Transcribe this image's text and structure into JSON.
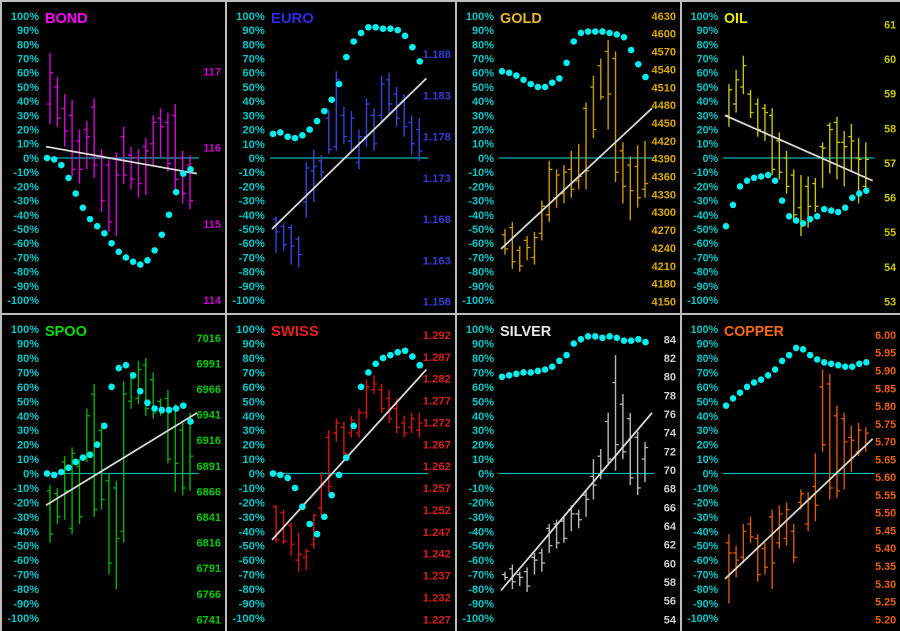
{
  "window": {
    "background": "#000000",
    "divider_color": "#BEBEBE"
  },
  "axis": {
    "left_labels": [
      "100%",
      "90%",
      "80%",
      "70%",
      "60%",
      "50%",
      "40%",
      "30%",
      "20%",
      "10%",
      "0%",
      "-10%",
      "-20%",
      "-30%",
      "-40%",
      "-50%",
      "-60%",
      "-70%",
      "-80%",
      "-90%",
      "-100%"
    ],
    "left_min": -100,
    "left_max": 100,
    "left_step": 10,
    "left_color": "#00C8C8",
    "dot_color": "#00F0F0",
    "zero_line_color": "#00B4B4",
    "trend_color": "#D8D8D8",
    "grid": "off"
  },
  "chart_data": [
    {
      "type": "ohlc+oscillator",
      "title": "BOND",
      "title_color": "#FF00FF",
      "bar_color": "#DB00DB",
      "axis_color": "#CC00CC",
      "right_labels": [
        "117",
        "116",
        "115",
        "114"
      ],
      "right_top_pct": 61,
      "right_bottom_pct": -100,
      "bars_ohlc_pct": [
        [
          74,
          24,
          38,
          60
        ],
        [
          57,
          22,
          50,
          28
        ],
        [
          45,
          8,
          35,
          19
        ],
        [
          41,
          -13,
          30,
          -8
        ],
        [
          20,
          -18,
          12,
          -8
        ],
        [
          26,
          -8,
          20,
          15
        ],
        [
          42,
          -14,
          36,
          -5
        ],
        [
          6,
          -38,
          0,
          -30
        ],
        [
          0,
          -52,
          -5,
          -45
        ],
        [
          4,
          -55,
          0,
          -12
        ],
        [
          22,
          -18,
          15,
          -12
        ],
        [
          8,
          -22,
          2,
          -15
        ],
        [
          6,
          -28,
          0,
          -18
        ],
        [
          14,
          -26,
          8,
          5
        ],
        [
          30,
          -6,
          10,
          25
        ],
        [
          35,
          0,
          28,
          22
        ],
        [
          32,
          -10,
          25,
          -4
        ],
        [
          38,
          -22,
          30,
          -15
        ],
        [
          5,
          -32,
          0,
          -25
        ],
        [
          2,
          -36,
          -5,
          -30
        ]
      ],
      "oscillator_dots_pct": [
        0,
        -1,
        -5,
        -14,
        -25,
        -35,
        -43,
        -48,
        -53,
        -60,
        -66,
        -70,
        -73,
        -75,
        -72,
        -65,
        -54,
        -40,
        -24,
        -11,
        -8
      ],
      "trendline_pct": [
        8,
        -11
      ],
      "zero_line_pct": 0
    },
    {
      "type": "ohlc+oscillator",
      "title": "EURO",
      "title_color": "#2A2AE8",
      "bar_color": "#3344DD",
      "axis_color": "#3939D6",
      "right_labels": [
        "1.188",
        "1.183",
        "1.178",
        "1.173",
        "1.168",
        "1.163",
        "1.158"
      ],
      "right_top_pct": 73,
      "right_bottom_pct": -101,
      "bars_ohlc_pct": [
        [
          -41,
          -67,
          -43,
          -52
        ],
        [
          -46,
          -65,
          -48,
          -61
        ],
        [
          -47,
          -75,
          -49,
          -62
        ],
        [
          -55,
          -77,
          -57,
          -68
        ],
        [
          -3,
          -42,
          -31,
          -7
        ],
        [
          6,
          -31,
          -9,
          -6
        ],
        [
          2,
          -14,
          -2,
          -10
        ],
        [
          34,
          3,
          28,
          6
        ],
        [
          61,
          5,
          8,
          55
        ],
        [
          36,
          10,
          30,
          15
        ],
        [
          33,
          5,
          12,
          28
        ],
        [
          20,
          -8,
          -3,
          15
        ],
        [
          42,
          8,
          15,
          38
        ],
        [
          35,
          5,
          30,
          10
        ],
        [
          58,
          25,
          30,
          52
        ],
        [
          60,
          30,
          55,
          38
        ],
        [
          50,
          22,
          45,
          28
        ],
        [
          45,
          15,
          40,
          22
        ],
        [
          30,
          2,
          25,
          10
        ],
        [
          28,
          -2,
          20,
          5
        ]
      ],
      "oscillator_dots_pct": [
        17,
        18,
        15,
        14,
        16,
        20,
        26,
        33,
        41,
        52,
        71,
        82,
        88,
        92,
        92,
        91,
        91,
        90,
        86,
        78,
        68
      ],
      "trendline_pct": [
        -50,
        56
      ],
      "zero_line_pct": 0
    },
    {
      "type": "ohlc+oscillator",
      "title": "GOLD",
      "title_color": "#E8B820",
      "bar_color": "#CC9900",
      "axis_color": "#D8A800",
      "right_labels": [
        "4630",
        "4600",
        "4570",
        "4540",
        "4510",
        "4480",
        "4450",
        "4420",
        "4390",
        "4360",
        "4330",
        "4300",
        "4270",
        "4240",
        "4210",
        "4180",
        "4150"
      ],
      "right_top_pct": 100,
      "right_bottom_pct": -101,
      "bars_ohlc_pct": [
        [
          -50,
          -68,
          -54,
          -64
        ],
        [
          -45,
          -78,
          -49,
          -73
        ],
        [
          -62,
          -80,
          -65,
          -76
        ],
        [
          -55,
          -72,
          -58,
          -63
        ],
        [
          -52,
          -75,
          -70,
          -56
        ],
        [
          -30,
          -58,
          -53,
          -34
        ],
        [
          -2,
          -45,
          -40,
          -8
        ],
        [
          -8,
          -35,
          -28,
          -12
        ],
        [
          -5,
          -32,
          -25,
          -10
        ],
        [
          5,
          -28,
          -8,
          -22
        ],
        [
          10,
          -22,
          -16,
          -13
        ],
        [
          39,
          -22,
          35,
          -9
        ],
        [
          58,
          14,
          50,
          20
        ],
        [
          70,
          41,
          65,
          43
        ],
        [
          83,
          20,
          75,
          45
        ],
        [
          75,
          -17,
          70,
          -10
        ],
        [
          11,
          -32,
          5,
          -20
        ],
        [
          1,
          -44,
          -5,
          -23
        ],
        [
          9,
          -35,
          -6,
          -28
        ],
        [
          12,
          -28,
          -22,
          -18
        ]
      ],
      "oscillator_dots_pct": [
        61,
        60,
        58,
        55,
        52,
        50,
        50,
        53,
        56,
        67,
        82,
        88,
        89,
        89,
        89,
        88,
        87,
        85,
        76,
        66,
        57
      ],
      "trendline_pct": [
        -64,
        35
      ],
      "zero_line_pct": 0
    },
    {
      "type": "ohlc+oscillator",
      "title": "OIL",
      "title_color": "#E8E800",
      "bar_color": "#C8C800",
      "axis_color": "#C8C800",
      "right_labels": [
        "61",
        "60",
        "59",
        "58",
        "57",
        "56",
        "55",
        "54",
        "53"
      ],
      "right_top_pct": 94,
      "right_bottom_pct": -101,
      "bars_ohlc_pct": [
        [
          52,
          22,
          30,
          48
        ],
        [
          62,
          32,
          38,
          55
        ],
        [
          72,
          45,
          50,
          65
        ],
        [
          48,
          28,
          45,
          32
        ],
        [
          42,
          15,
          38,
          20
        ],
        [
          38,
          12,
          35,
          32
        ],
        [
          35,
          -12,
          30,
          -8
        ],
        [
          18,
          -15,
          12,
          -10
        ],
        [
          5,
          -25,
          0,
          -20
        ],
        [
          -8,
          -45,
          -12,
          -40
        ],
        [
          -12,
          -55,
          -35,
          -48
        ],
        [
          -13,
          -49,
          -20,
          -34
        ],
        [
          -14,
          -38,
          -18,
          -34
        ],
        [
          11,
          -21,
          8,
          7
        ],
        [
          25,
          -11,
          23,
          20
        ],
        [
          29,
          -15,
          25,
          11
        ],
        [
          19,
          -20,
          11,
          8
        ],
        [
          24,
          -9,
          15,
          12
        ],
        [
          14,
          -32,
          0,
          -1
        ],
        [
          11,
          -22,
          -20,
          -1
        ]
      ],
      "oscillator_dots_pct": [
        -48,
        -33,
        -20,
        -16,
        -14,
        -13,
        -12,
        -16,
        -30,
        -41,
        -44,
        -46,
        -43,
        -41,
        -36,
        -37,
        -38,
        -35,
        -28,
        -25,
        -23
      ],
      "trendline_pct": [
        30,
        -16
      ],
      "zero_line_pct": 0
    },
    {
      "type": "ohlc+oscillator",
      "title": "SPOO",
      "title_color": "#00E000",
      "bar_color": "#00B400",
      "axis_color": "#00CC00",
      "right_labels": [
        "7016",
        "6991",
        "6966",
        "6941",
        "6916",
        "6891",
        "6866",
        "6841",
        "6816",
        "6791",
        "6766",
        "6741"
      ],
      "right_top_pct": 94,
      "right_bottom_pct": -101,
      "bars_ohlc_pct": [
        [
          -8,
          -48,
          -12,
          -42
        ],
        [
          -10,
          -35,
          -14,
          -30
        ],
        [
          12,
          -32,
          8,
          -12
        ],
        [
          18,
          -42,
          -38,
          14
        ],
        [
          10,
          -35,
          5,
          -30
        ],
        [
          45,
          8,
          12,
          40
        ],
        [
          62,
          -30,
          55,
          -25
        ],
        [
          35,
          -25,
          30,
          -18
        ],
        [
          0,
          -70,
          -5,
          -62
        ],
        [
          -5,
          -80,
          -10,
          -45
        ],
        [
          64,
          -48,
          -40,
          55
        ],
        [
          70,
          45,
          50,
          66
        ],
        [
          78,
          48,
          52,
          72
        ],
        [
          80,
          40,
          75,
          45
        ],
        [
          70,
          38,
          65,
          42
        ],
        [
          52,
          40,
          50,
          42
        ],
        [
          58,
          7,
          52,
          10
        ],
        [
          48,
          -13,
          45,
          7
        ],
        [
          35,
          -15,
          30,
          -10
        ],
        [
          42,
          -12,
          38,
          12
        ]
      ],
      "oscillator_dots_pct": [
        0,
        -1,
        1,
        4,
        8,
        11,
        13,
        20,
        33,
        60,
        73,
        75,
        68,
        57,
        49,
        45,
        44,
        44,
        45,
        47,
        36
      ],
      "trendline_pct": [
        -22,
        42
      ],
      "zero_line_pct": 0
    },
    {
      "type": "ohlc+oscillator",
      "title": "SWISS",
      "title_color": "#E82020",
      "bar_color": "#D41414",
      "axis_color": "#D42020",
      "right_labels": [
        "1.292",
        "1.287",
        "1.282",
        "1.277",
        "1.272",
        "1.267",
        "1.262",
        "1.257",
        "1.252",
        "1.247",
        "1.242",
        "1.237",
        "1.232",
        "1.227"
      ],
      "right_top_pct": 96,
      "right_bottom_pct": -101,
      "bars_ohlc_pct": [
        [
          -22,
          -48,
          -23,
          -46
        ],
        [
          -25,
          -49,
          -27,
          -47
        ],
        [
          -34,
          -57,
          -36,
          -49
        ],
        [
          -41,
          -68,
          -60,
          -56
        ],
        [
          -52,
          -67,
          -58,
          -54
        ],
        [
          -28,
          -52,
          -49,
          -29
        ],
        [
          1,
          -29,
          -24,
          -8
        ],
        [
          30,
          -14,
          25,
          -9
        ],
        [
          38,
          22,
          28,
          35
        ],
        [
          36,
          10,
          32,
          14
        ],
        [
          40,
          25,
          28,
          37
        ],
        [
          45,
          25,
          28,
          42
        ],
        [
          65,
          38,
          42,
          60
        ],
        [
          68,
          55,
          58,
          62
        ],
        [
          62,
          42,
          58,
          45
        ],
        [
          58,
          35,
          52,
          38
        ],
        [
          52,
          28,
          45,
          32
        ],
        [
          40,
          25,
          35,
          28
        ],
        [
          42,
          28,
          32,
          38
        ],
        [
          42,
          25,
          30,
          35
        ]
      ],
      "oscillator_dots_pct": [
        0,
        -1,
        -3,
        -10,
        -23,
        -35,
        -42,
        -30,
        -15,
        -1,
        11,
        33,
        60,
        70,
        76,
        80,
        82,
        84,
        85,
        81,
        75
      ],
      "trendline_pct": [
        -46,
        72
      ],
      "zero_line_pct": 0
    },
    {
      "type": "ohlc+oscillator",
      "title": "SILVER",
      "title_color": "#E8E8E8",
      "bar_color": "#B8B8B8",
      "axis_color": "#D0D0D0",
      "right_labels": [
        "84",
        "82",
        "80",
        "78",
        "76",
        "74",
        "72",
        "70",
        "68",
        "66",
        "64",
        "62",
        "60",
        "58",
        "56",
        "54"
      ],
      "right_top_pct": 93,
      "right_bottom_pct": -101,
      "bars_ohlc_pct": [
        [
          -68,
          -74,
          -70,
          -72
        ],
        [
          -63,
          -80,
          -66,
          -75
        ],
        [
          -68,
          -78,
          -70,
          -72
        ],
        [
          -65,
          -82,
          -68,
          -78
        ],
        [
          -55,
          -70,
          -58,
          -60
        ],
        [
          -52,
          -68,
          -55,
          -62
        ],
        [
          -35,
          -55,
          -38,
          -50
        ],
        [
          -32,
          -52,
          -35,
          -48
        ],
        [
          -30,
          -48,
          -33,
          -45
        ],
        [
          -22,
          -40,
          -25,
          -28
        ],
        [
          -25,
          -38,
          -28,
          -32
        ],
        [
          -12,
          -30,
          -15,
          -18
        ],
        [
          10,
          -18,
          -2,
          -8
        ],
        [
          17,
          -4,
          12,
          2
        ],
        [
          42,
          6,
          36,
          10
        ],
        [
          82,
          2,
          63,
          20
        ],
        [
          55,
          10,
          48,
          15
        ],
        [
          42,
          -8,
          38,
          -3
        ],
        [
          29,
          -15,
          25,
          -10
        ],
        [
          22,
          -6,
          10,
          18
        ]
      ],
      "oscillator_dots_pct": [
        67,
        68,
        69,
        70,
        70,
        71,
        72,
        74,
        78,
        82,
        90,
        93,
        95,
        95,
        94,
        95,
        94,
        92,
        92,
        93,
        91
      ],
      "trendline_pct": [
        -81,
        42
      ],
      "zero_line_pct": 0
    },
    {
      "type": "ohlc+oscillator",
      "title": "COPPER",
      "title_color": "#FF6910",
      "bar_color": "#E05A00",
      "axis_color": "#E86010",
      "right_labels": [
        "6.00",
        "5.95",
        "5.90",
        "5.85",
        "5.80",
        "5.75",
        "5.70",
        "5.65",
        "5.60",
        "5.55",
        "5.50",
        "5.45",
        "5.40",
        "5.35",
        "5.30",
        "5.25",
        "5.20"
      ],
      "right_top_pct": 96,
      "right_bottom_pct": -101,
      "bars_ohlc_pct": [
        [
          -42,
          -90,
          -48,
          -55
        ],
        [
          -50,
          -72,
          -55,
          -60
        ],
        [
          -35,
          -62,
          -58,
          -40
        ],
        [
          -30,
          -48,
          -35,
          -44
        ],
        [
          -42,
          -75,
          -45,
          -70
        ],
        [
          -48,
          -70,
          -52,
          -65
        ],
        [
          -25,
          -80,
          -30,
          -62
        ],
        [
          -22,
          -52,
          -48,
          -28
        ],
        [
          -20,
          -50,
          -45,
          -25
        ],
        [
          -35,
          -62,
          -40,
          -58
        ],
        [
          -11,
          -25,
          -20,
          -14
        ],
        [
          -13,
          -40,
          -35,
          -18
        ],
        [
          14,
          -33,
          -9,
          -22
        ],
        [
          72,
          15,
          60,
          20
        ],
        [
          69,
          -18,
          62,
          -10
        ],
        [
          47,
          -17,
          40,
          -12
        ],
        [
          42,
          -11,
          38,
          22
        ],
        [
          33,
          1,
          25,
          23
        ],
        [
          35,
          12,
          15,
          30
        ],
        [
          32,
          15,
          18,
          28
        ]
      ],
      "oscillator_dots_pct": [
        47,
        52,
        56,
        60,
        63,
        65,
        68,
        72,
        78,
        82,
        87,
        86,
        82,
        79,
        77,
        76,
        75,
        74,
        74,
        76,
        77
      ],
      "trendline_pct": [
        -73,
        24
      ],
      "zero_line_pct": 0
    }
  ]
}
